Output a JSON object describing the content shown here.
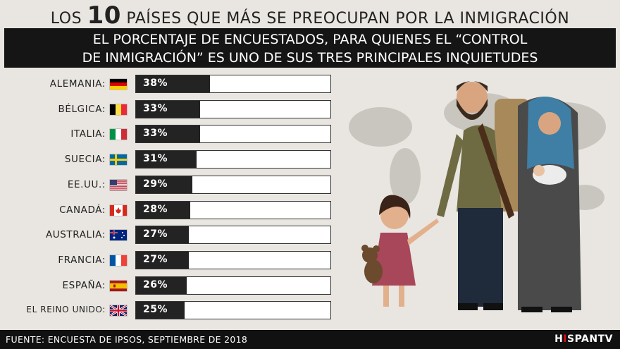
{
  "title": {
    "prefix": "LOS",
    "number": "10",
    "rest": "PAÍSES QUE MÁS SE PREOCUPAN POR LA INMIGRACIÓN"
  },
  "subtitle": {
    "line1": "EL PORCENTAJE DE ENCUESTADOS, PARA QUIENES EL “CONTROL",
    "line2": "DE INMIGRACIÓN” ES UNO DE SUS TRES PRINCIPALES INQUIETUDES"
  },
  "chart_data": {
    "type": "bar",
    "orientation": "horizontal",
    "categories": [
      "ALEMANIA:",
      "BÉLGICA:",
      "ITALIA:",
      "SUECIA:",
      "EE.UU.:",
      "CANADÁ:",
      "AUSTRALIA:",
      "FRANCIA:",
      "ESPAÑA:",
      "EL REINO UNIDO:"
    ],
    "values": [
      38,
      33,
      33,
      31,
      29,
      28,
      27,
      27,
      26,
      25
    ],
    "labels": [
      "38%",
      "33%",
      "33%",
      "31%",
      "29%",
      "28%",
      "27%",
      "27%",
      "26%",
      "25%"
    ],
    "xlim": [
      0,
      100
    ],
    "flags": [
      "germany-flag",
      "belgium-flag",
      "italy-flag",
      "sweden-flag",
      "usa-flag",
      "canada-flag",
      "australia-flag",
      "france-flag",
      "spain-flag",
      "uk-flag"
    ],
    "bar_color": "#232323",
    "track_color": "#ffffff"
  },
  "footer": {
    "source": "FUENTE: ENCUESTA DE IPSOS, SEPTIEMBRE DE 2018",
    "logo_h": "H",
    "logo_i": "I",
    "logo_rest": "SPANTV"
  },
  "colors": {
    "background": "#e9e6e1",
    "banner": "#151515",
    "brand_red": "#e30b17"
  }
}
